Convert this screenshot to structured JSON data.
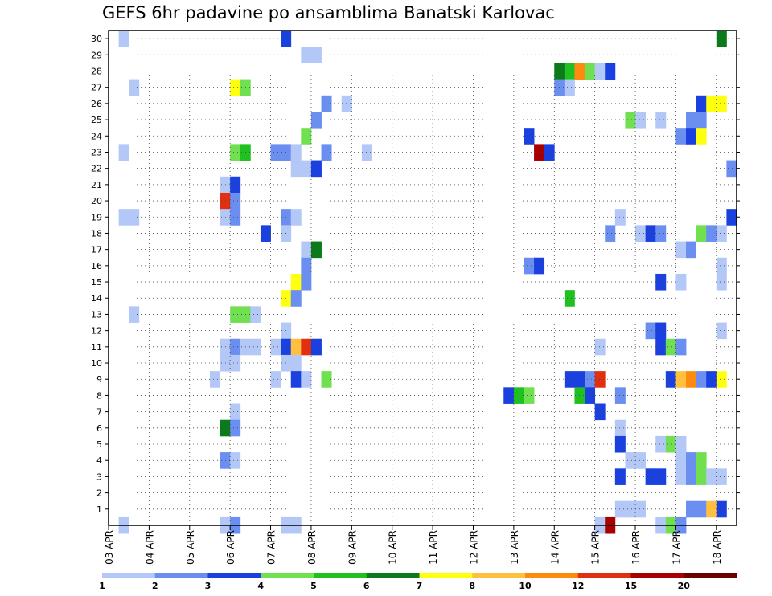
{
  "title": "GEFS 6hr padavine po ansamblima Banatski Karlovac",
  "chart_data": {
    "type": "heatmap",
    "title": "GEFS 6hr padavine po ansamblima Banatski Karlovac",
    "xlabel": "",
    "ylabel": "",
    "x_tick_labels": [
      "03 APR",
      "04 APR",
      "05 APR",
      "06 APR",
      "07 APR",
      "08 APR",
      "09 APR",
      "10 APR",
      "11 APR",
      "12 APR",
      "13 APR",
      "14 APR",
      "15 APR",
      "16 APR",
      "17 APR",
      "18 APR"
    ],
    "y_tick_labels": [
      "1",
      "2",
      "3",
      "4",
      "5",
      "6",
      "7",
      "8",
      "9",
      "10",
      "11",
      "12",
      "13",
      "14",
      "15",
      "16",
      "17",
      "18",
      "19",
      "20",
      "21",
      "22",
      "23",
      "24",
      "25",
      "26",
      "27",
      "28",
      "29",
      "30"
    ],
    "y_range": [
      0,
      30
    ],
    "time_steps_per_day": 4,
    "grid": true,
    "colorbar": {
      "position": "bottom",
      "tick_labels": [
        "1",
        "2",
        "3",
        "4",
        "5",
        "6",
        "7",
        "8",
        "10",
        "12",
        "15",
        "20"
      ],
      "colors": [
        "#b4c8f8",
        "#6a8ff0",
        "#1a40e0",
        "#70e050",
        "#20c020",
        "#0a7a1a",
        "#ffff10",
        "#ffc040",
        "#ff8a10",
        "#e03010",
        "#a80000",
        "#6a0000"
      ]
    },
    "cells": [
      [
        30,
        1,
        1
      ],
      [
        30,
        17,
        3
      ],
      [
        30,
        60,
        6
      ],
      [
        29,
        19,
        1
      ],
      [
        29,
        20,
        1
      ],
      [
        28,
        44,
        6
      ],
      [
        28,
        45,
        5
      ],
      [
        28,
        46,
        9
      ],
      [
        28,
        47,
        4
      ],
      [
        28,
        48,
        1
      ],
      [
        28,
        49,
        3
      ],
      [
        27,
        2,
        1
      ],
      [
        27,
        12,
        7
      ],
      [
        27,
        13,
        4
      ],
      [
        27,
        44,
        2
      ],
      [
        27,
        45,
        1
      ],
      [
        26,
        21,
        2
      ],
      [
        26,
        23,
        1
      ],
      [
        26,
        58,
        3
      ],
      [
        26,
        59,
        7
      ],
      [
        26,
        60,
        7
      ],
      [
        25,
        20,
        2
      ],
      [
        25,
        51,
        4
      ],
      [
        25,
        52,
        1
      ],
      [
        25,
        54,
        1
      ],
      [
        25,
        57,
        2
      ],
      [
        25,
        58,
        2
      ],
      [
        24,
        19,
        4
      ],
      [
        24,
        41,
        3
      ],
      [
        24,
        56,
        2
      ],
      [
        24,
        57,
        3
      ],
      [
        24,
        58,
        7
      ],
      [
        23,
        1,
        1
      ],
      [
        23,
        12,
        4
      ],
      [
        23,
        13,
        5
      ],
      [
        23,
        16,
        2
      ],
      [
        23,
        17,
        2
      ],
      [
        23,
        18,
        1
      ],
      [
        23,
        21,
        2
      ],
      [
        23,
        25,
        1
      ],
      [
        23,
        42,
        11
      ],
      [
        23,
        43,
        3
      ],
      [
        22,
        18,
        1
      ],
      [
        22,
        19,
        1
      ],
      [
        22,
        20,
        3
      ],
      [
        22,
        61,
        2
      ],
      [
        21,
        11,
        1
      ],
      [
        21,
        12,
        3
      ],
      [
        20,
        11,
        10
      ],
      [
        20,
        12,
        2
      ],
      [
        19,
        1,
        1
      ],
      [
        19,
        2,
        1
      ],
      [
        19,
        11,
        1
      ],
      [
        19,
        12,
        2
      ],
      [
        19,
        17,
        2
      ],
      [
        19,
        18,
        1
      ],
      [
        19,
        50,
        1
      ],
      [
        19,
        61,
        3
      ],
      [
        18,
        15,
        3
      ],
      [
        18,
        17,
        1
      ],
      [
        18,
        49,
        2
      ],
      [
        18,
        52,
        1
      ],
      [
        18,
        53,
        3
      ],
      [
        18,
        54,
        2
      ],
      [
        18,
        58,
        4
      ],
      [
        18,
        59,
        2
      ],
      [
        18,
        60,
        1
      ],
      [
        17,
        19,
        1
      ],
      [
        17,
        20,
        6
      ],
      [
        17,
        56,
        1
      ],
      [
        17,
        57,
        2
      ],
      [
        16,
        19,
        2
      ],
      [
        16,
        41,
        2
      ],
      [
        16,
        42,
        3
      ],
      [
        16,
        60,
        1
      ],
      [
        15,
        18,
        7
      ],
      [
        15,
        19,
        2
      ],
      [
        15,
        54,
        3
      ],
      [
        15,
        56,
        1
      ],
      [
        15,
        60,
        1
      ],
      [
        14,
        17,
        7
      ],
      [
        14,
        18,
        2
      ],
      [
        14,
        45,
        5
      ],
      [
        13,
        2,
        1
      ],
      [
        13,
        12,
        4
      ],
      [
        13,
        13,
        4
      ],
      [
        13,
        14,
        1
      ],
      [
        12,
        17,
        1
      ],
      [
        12,
        53,
        2
      ],
      [
        12,
        54,
        3
      ],
      [
        12,
        60,
        1
      ],
      [
        11,
        11,
        1
      ],
      [
        11,
        12,
        2
      ],
      [
        11,
        13,
        1
      ],
      [
        11,
        14,
        1
      ],
      [
        11,
        16,
        1
      ],
      [
        11,
        17,
        3
      ],
      [
        11,
        18,
        8
      ],
      [
        11,
        19,
        10
      ],
      [
        11,
        20,
        3
      ],
      [
        11,
        48,
        1
      ],
      [
        11,
        54,
        3
      ],
      [
        11,
        55,
        4
      ],
      [
        11,
        56,
        2
      ],
      [
        10,
        11,
        1
      ],
      [
        10,
        12,
        1
      ],
      [
        10,
        17,
        1
      ],
      [
        10,
        18,
        1
      ],
      [
        9,
        10,
        1
      ],
      [
        9,
        16,
        1
      ],
      [
        9,
        18,
        3
      ],
      [
        9,
        19,
        1
      ],
      [
        9,
        21,
        4
      ],
      [
        9,
        45,
        3
      ],
      [
        9,
        46,
        3
      ],
      [
        9,
        47,
        2
      ],
      [
        9,
        48,
        10
      ],
      [
        9,
        55,
        3
      ],
      [
        9,
        56,
        8
      ],
      [
        9,
        57,
        9
      ],
      [
        9,
        58,
        2
      ],
      [
        9,
        59,
        3
      ],
      [
        9,
        60,
        7
      ],
      [
        8,
        39,
        3
      ],
      [
        8,
        40,
        5
      ],
      [
        8,
        41,
        4
      ],
      [
        8,
        46,
        5
      ],
      [
        8,
        47,
        3
      ],
      [
        8,
        50,
        2
      ],
      [
        7,
        12,
        1
      ],
      [
        7,
        48,
        3
      ],
      [
        6,
        11,
        6
      ],
      [
        6,
        12,
        2
      ],
      [
        6,
        50,
        1
      ],
      [
        5,
        50,
        3
      ],
      [
        5,
        54,
        1
      ],
      [
        5,
        55,
        4
      ],
      [
        5,
        56,
        1
      ],
      [
        4,
        11,
        2
      ],
      [
        4,
        12,
        1
      ],
      [
        4,
        51,
        1
      ],
      [
        4,
        52,
        1
      ],
      [
        4,
        56,
        1
      ],
      [
        4,
        57,
        2
      ],
      [
        4,
        58,
        4
      ],
      [
        3,
        50,
        3
      ],
      [
        3,
        53,
        3
      ],
      [
        3,
        54,
        3
      ],
      [
        3,
        56,
        1
      ],
      [
        3,
        57,
        2
      ],
      [
        3,
        58,
        4
      ],
      [
        3,
        59,
        1
      ],
      [
        3,
        60,
        1
      ],
      [
        1,
        50,
        1
      ],
      [
        1,
        51,
        1
      ],
      [
        1,
        52,
        1
      ],
      [
        1,
        57,
        2
      ],
      [
        1,
        58,
        2
      ],
      [
        1,
        59,
        8
      ],
      [
        1,
        60,
        3
      ],
      [
        0,
        1,
        1
      ],
      [
        0,
        11,
        1
      ],
      [
        0,
        12,
        2
      ],
      [
        0,
        17,
        1
      ],
      [
        0,
        18,
        1
      ],
      [
        0,
        48,
        1
      ],
      [
        0,
        49,
        11
      ],
      [
        0,
        54,
        1
      ],
      [
        0,
        55,
        4
      ],
      [
        0,
        56,
        2
      ]
    ]
  }
}
